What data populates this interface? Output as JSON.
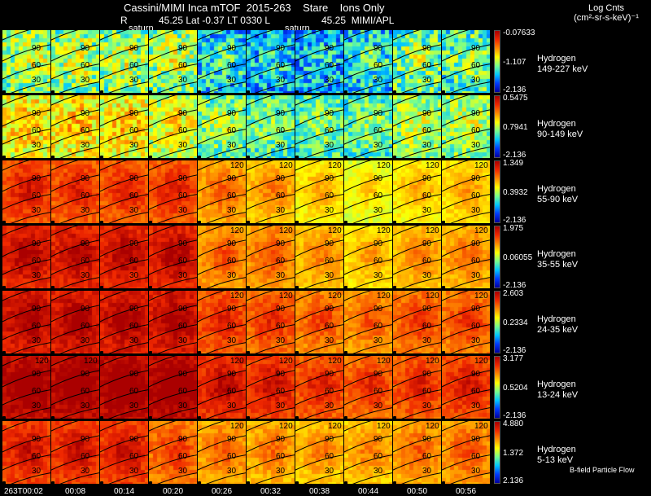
{
  "header": {
    "title": "Cassini/MIMI Inca mTOF  2015-263    Stare    Ions Only",
    "r_label": "R",
    "position": "45.25 Lat -0.37 LT 0330 L",
    "l_value": "45.25  MIMI/APL",
    "saturn_1": "saturn",
    "saturn_2": "saturn"
  },
  "units": {
    "line1": "Log Cnts",
    "line2": "(cm²-sr-s-keV)⁻¹"
  },
  "footer_label": "B-field Particle Flow",
  "chart_data": {
    "type": "heatmap",
    "title": "Cassini/MIMI Inca mTOF  2015-263    Stare    Ions Only",
    "time_labels": [
      "263T00:02",
      "00:08",
      "00:14",
      "00:20",
      "00:26",
      "00:32",
      "00:38",
      "00:44",
      "00:50",
      "00:56"
    ],
    "contour_labels": [
      "90",
      "60",
      "30",
      "120"
    ],
    "rows": [
      {
        "species": "Hydrogen",
        "energy": "149-227 keV",
        "cbar_max": "-0.07633",
        "cbar_mid": "-1.107",
        "cbar_min": "-2.136",
        "intensity": [
          0.45,
          0.45,
          0.45,
          0.45,
          0.3,
          0.25,
          0.25,
          0.3,
          0.4,
          0.38
        ]
      },
      {
        "species": "Hydrogen",
        "energy": "90-149 keV",
        "cbar_max": "0.5475",
        "cbar_mid": "0.7941",
        "cbar_min": "-2.136",
        "intensity": [
          0.58,
          0.58,
          0.56,
          0.52,
          0.42,
          0.38,
          0.38,
          0.38,
          0.45,
          0.45
        ]
      },
      {
        "species": "Hydrogen",
        "energy": "55-90 keV",
        "cbar_max": "1.349",
        "cbar_mid": "0.3932",
        "cbar_min": "-2.136",
        "intensity": [
          0.82,
          0.8,
          0.8,
          0.8,
          0.7,
          0.66,
          0.6,
          0.55,
          0.6,
          0.62
        ]
      },
      {
        "species": "Hydrogen",
        "energy": "35-55 keV",
        "cbar_max": "1.975",
        "cbar_mid": "0.06055",
        "cbar_min": "-2.136",
        "intensity": [
          0.88,
          0.88,
          0.88,
          0.88,
          0.72,
          0.72,
          0.66,
          0.62,
          0.66,
          0.68
        ]
      },
      {
        "species": "Hydrogen",
        "energy": "24-35 keV",
        "cbar_max": "2.603",
        "cbar_mid": "0.2334",
        "cbar_min": "-2.136",
        "intensity": [
          0.9,
          0.9,
          0.9,
          0.9,
          0.8,
          0.78,
          0.74,
          0.72,
          0.76,
          0.76
        ]
      },
      {
        "species": "Hydrogen",
        "energy": "13-24 keV",
        "cbar_max": "3.177",
        "cbar_mid": "0.5204",
        "cbar_min": "-2.136",
        "intensity": [
          0.95,
          0.95,
          0.96,
          0.96,
          0.86,
          0.84,
          0.8,
          0.78,
          0.8,
          0.82
        ]
      },
      {
        "species": "Hydrogen",
        "energy": "5-13 keV",
        "cbar_max": "4.880",
        "cbar_mid": "1.372",
        "cbar_min": "2.136",
        "intensity": [
          0.84,
          0.84,
          0.84,
          0.76,
          0.7,
          0.68,
          0.66,
          0.66,
          0.7,
          0.72
        ]
      }
    ]
  }
}
